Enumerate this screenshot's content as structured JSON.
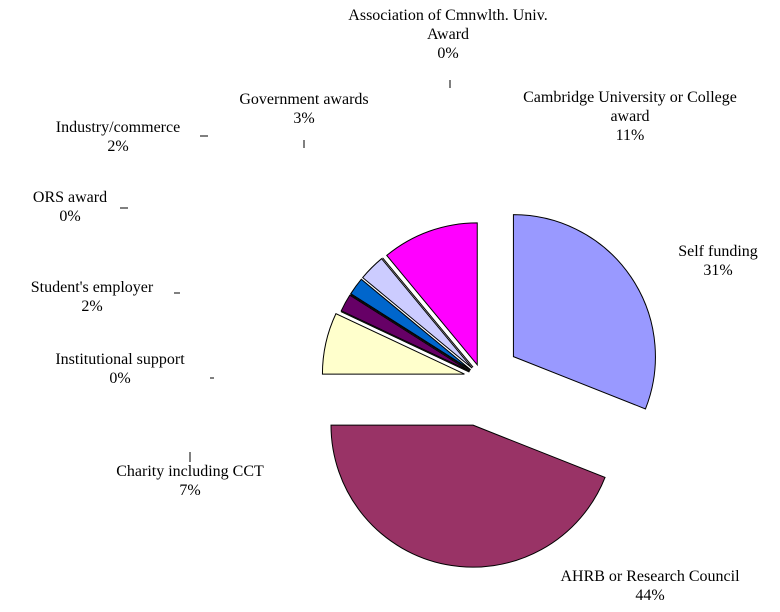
{
  "chart_data": {
    "type": "pie",
    "categories": [
      "Self funding",
      "AHRB or Research Council",
      "Charity including CCT",
      "Institutional support",
      "Student's employer",
      "ORS award",
      "Industry/commerce",
      "Government awards",
      "Association of Cmnwlth. Univ. Award",
      "Cambridge University or College award"
    ],
    "values": [
      31,
      44,
      7,
      0,
      2,
      0,
      2,
      3,
      0,
      11
    ],
    "value_labels": [
      "31%",
      "44%",
      "7%",
      "0%",
      "2%",
      "0%",
      "2%",
      "3%",
      "0%",
      "11%"
    ],
    "colors": [
      "#9999ff",
      "#993366",
      "#ffffcc",
      "#ccffff",
      "#660066",
      "#ff8080",
      "#0066cc",
      "#ccccff",
      "#000080",
      "#ff00ff"
    ]
  }
}
